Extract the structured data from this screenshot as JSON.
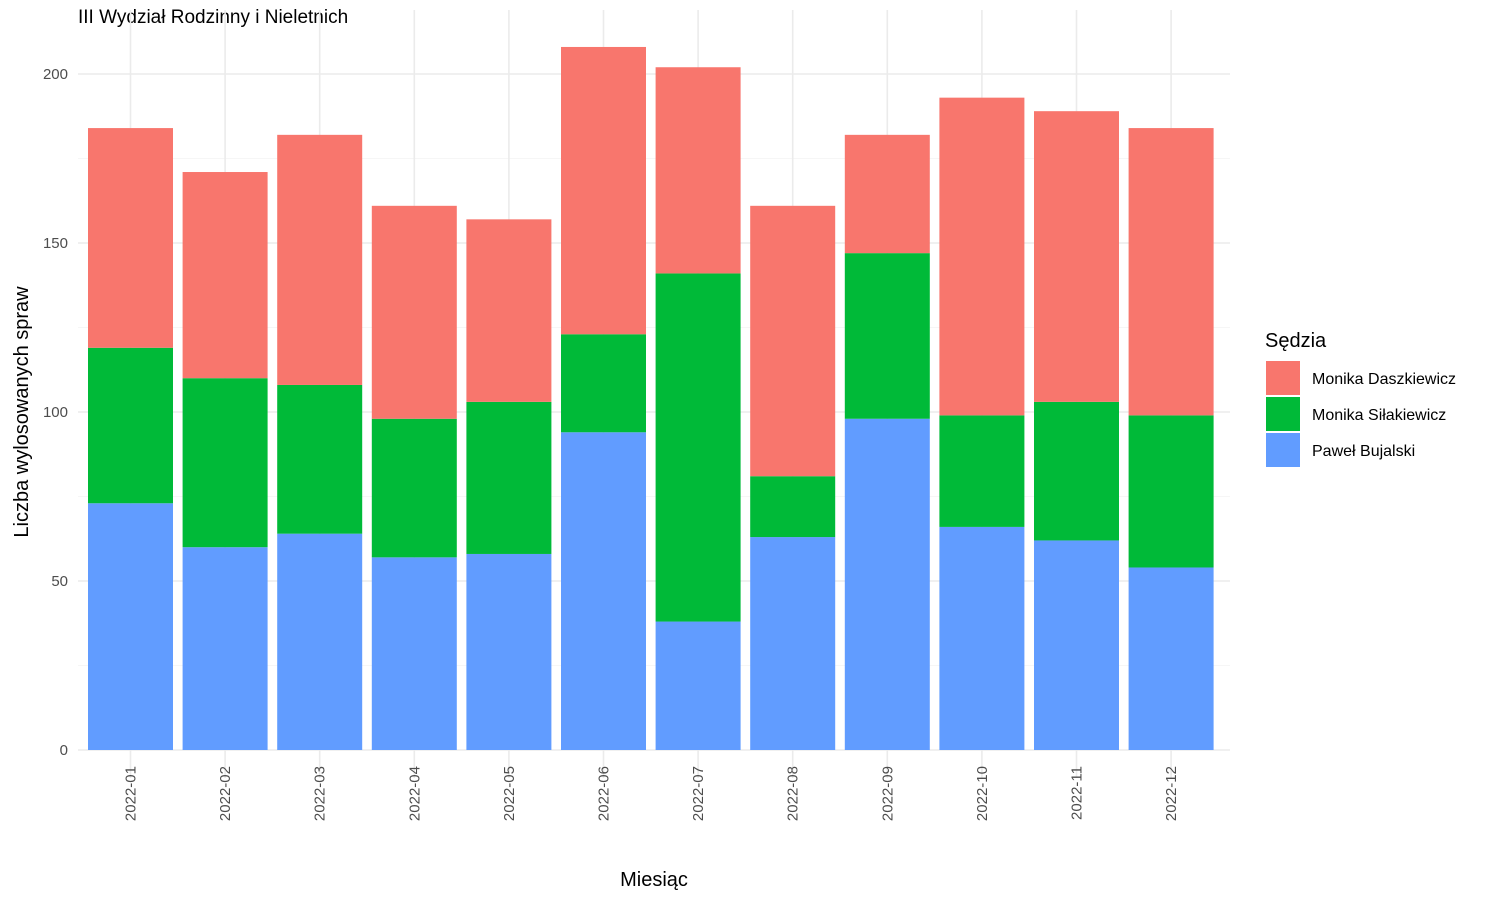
{
  "chart_data": {
    "type": "bar",
    "stacked": true,
    "title": "III Wydział Rodzinny i Nieletnich",
    "xlabel": "Miesiąc",
    "ylabel": "Liczba wylosowanych spraw",
    "ylim": [
      0,
      218
    ],
    "yticks": [
      0,
      50,
      100,
      150,
      200
    ],
    "grid": true,
    "legend": {
      "title": "Sędzia",
      "placement": "right"
    },
    "categories": [
      "2022-01",
      "2022-02",
      "2022-03",
      "2022-04",
      "2022-05",
      "2022-06",
      "2022-07",
      "2022-08",
      "2022-09",
      "2022-10",
      "2022-11",
      "2022-12"
    ],
    "series": [
      {
        "name": "Paweł Bujalski",
        "color": "#619CFF",
        "values": [
          73,
          60,
          64,
          57,
          58,
          94,
          38,
          63,
          98,
          66,
          62,
          54
        ]
      },
      {
        "name": "Monika Siłakiewicz",
        "color": "#00BA38",
        "values": [
          46,
          50,
          44,
          41,
          45,
          29,
          103,
          18,
          49,
          33,
          41,
          45
        ]
      },
      {
        "name": "Monika Daszkiewicz",
        "color": "#F8766D",
        "values": [
          65,
          61,
          74,
          63,
          54,
          85,
          61,
          80,
          35,
          94,
          86,
          85
        ]
      }
    ],
    "legend_order": [
      "Monika Daszkiewicz",
      "Monika Siłakiewicz",
      "Paweł Bujalski"
    ]
  }
}
